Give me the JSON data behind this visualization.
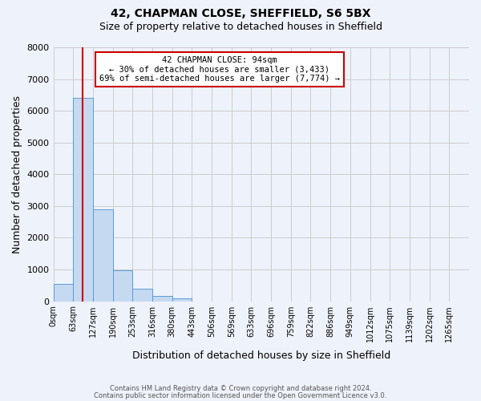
{
  "title1": "42, CHAPMAN CLOSE, SHEFFIELD, S6 5BX",
  "title2": "Size of property relative to detached houses in Sheffield",
  "xlabel": "Distribution of detached houses by size in Sheffield",
  "ylabel": "Number of detached properties",
  "bar_values": [
    550,
    6400,
    2900,
    975,
    380,
    175,
    100,
    0,
    0,
    0,
    0,
    0,
    0,
    0,
    0,
    0,
    0,
    0,
    0,
    0
  ],
  "bar_labels": [
    "0sqm",
    "63sqm",
    "127sqm",
    "190sqm",
    "253sqm",
    "316sqm",
    "380sqm",
    "443sqm",
    "506sqm",
    "569sqm",
    "633sqm",
    "696sqm",
    "759sqm",
    "822sqm",
    "886sqm",
    "949sqm",
    "1012sqm",
    "1075sqm",
    "1139sqm",
    "1202sqm",
    "1265sqm"
  ],
  "bar_color": "#c5d9f1",
  "bar_edge_color": "#5b9bd5",
  "vline_x": 94,
  "bin_width": 63,
  "ylim": [
    0,
    8000
  ],
  "yticks": [
    0,
    1000,
    2000,
    3000,
    4000,
    5000,
    6000,
    7000,
    8000
  ],
  "annotation_title": "42 CHAPMAN CLOSE: 94sqm",
  "annotation_line1": "← 30% of detached houses are smaller (3,433)",
  "annotation_line2": "69% of semi-detached houses are larger (7,774) →",
  "annotation_box_color": "#ffffff",
  "annotation_box_edge": "#cc0000",
  "vline_color": "#cc0000",
  "footer1": "Contains HM Land Registry data © Crown copyright and database right 2024.",
  "footer2": "Contains public sector information licensed under the Open Government Licence v3.0.",
  "background_color": "#eef2fa",
  "grid_color": "#cccccc"
}
